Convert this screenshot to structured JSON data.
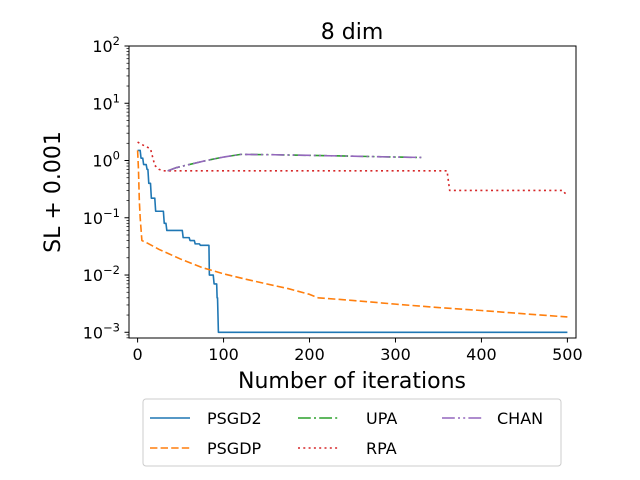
{
  "chart_data": {
    "type": "line",
    "title": "8 dim",
    "xlabel": "Number of iterations",
    "ylabel": "SL + 0.001",
    "xlim": [
      -10,
      510
    ],
    "ylim_log10": [
      -3.1,
      2.0
    ],
    "yscale": "log",
    "grid": false,
    "legend_position": "below-center",
    "x_ticks": [
      0,
      100,
      200,
      300,
      400,
      500
    ],
    "x_tick_labels": [
      "0",
      "100",
      "200",
      "300",
      "400",
      "500"
    ],
    "y_ticks": [
      0.001,
      0.01,
      0.1,
      1,
      10,
      100
    ],
    "y_tick_labels": [
      {
        "base": "10",
        "exp": "−3"
      },
      {
        "base": "10",
        "exp": "−2"
      },
      {
        "base": "10",
        "exp": "−1"
      },
      {
        "base": "10",
        "exp": "0"
      },
      {
        "base": "10",
        "exp": "1"
      },
      {
        "base": "10",
        "exp": "2"
      }
    ],
    "series": [
      {
        "name": "PSGD2",
        "color": "#1f77b4",
        "dash": "solid",
        "points": [
          [
            0,
            1.5
          ],
          [
            3,
            1.5
          ],
          [
            4,
            1.1
          ],
          [
            6,
            1.1
          ],
          [
            7,
            0.85
          ],
          [
            10,
            0.85
          ],
          [
            11,
            0.7
          ],
          [
            12,
            0.7
          ],
          [
            13,
            0.4
          ],
          [
            15,
            0.4
          ],
          [
            16,
            0.22
          ],
          [
            20,
            0.22
          ],
          [
            21,
            0.13
          ],
          [
            30,
            0.13
          ],
          [
            31,
            0.08
          ],
          [
            33,
            0.08
          ],
          [
            34,
            0.06
          ],
          [
            52,
            0.06
          ],
          [
            53,
            0.045
          ],
          [
            60,
            0.045
          ],
          [
            61,
            0.04
          ],
          [
            66,
            0.04
          ],
          [
            67,
            0.035
          ],
          [
            72,
            0.035
          ],
          [
            73,
            0.033
          ],
          [
            83,
            0.033
          ],
          [
            83.5,
            0.01
          ],
          [
            88,
            0.01
          ],
          [
            89,
            0.007
          ],
          [
            92,
            0.007
          ],
          [
            92.5,
            0.004
          ],
          [
            93,
            0.004
          ],
          [
            94,
            0.001
          ],
          [
            500,
            0.001
          ]
        ]
      },
      {
        "name": "PSGDP",
        "color": "#ff7f0e",
        "dash": "dashed",
        "points": [
          [
            0,
            1.5
          ],
          [
            1,
            0.7
          ],
          [
            2,
            0.2
          ],
          [
            3,
            0.1
          ],
          [
            5,
            0.04
          ],
          [
            10,
            0.037
          ],
          [
            25,
            0.028
          ],
          [
            50,
            0.019
          ],
          [
            75,
            0.0135
          ],
          [
            100,
            0.0105
          ],
          [
            125,
            0.0085
          ],
          [
            150,
            0.007
          ],
          [
            175,
            0.0058
          ],
          [
            200,
            0.0046
          ],
          [
            210,
            0.004
          ],
          [
            250,
            0.0036
          ],
          [
            300,
            0.0031
          ],
          [
            350,
            0.0027
          ],
          [
            400,
            0.0024
          ],
          [
            450,
            0.0021
          ],
          [
            500,
            0.00185
          ]
        ]
      },
      {
        "name": "UPA",
        "color": "#2ca02c",
        "dash": "dashdot",
        "points": [
          [
            35,
            0.66
          ],
          [
            45,
            0.75
          ],
          [
            60,
            0.85
          ],
          [
            80,
            1.0
          ],
          [
            100,
            1.15
          ],
          [
            120,
            1.28
          ],
          [
            160,
            1.26
          ],
          [
            200,
            1.23
          ],
          [
            250,
            1.19
          ],
          [
            300,
            1.15
          ],
          [
            330,
            1.13
          ]
        ]
      },
      {
        "name": "RPA",
        "color": "#d62728",
        "dash": "dotted",
        "points": [
          [
            0,
            2.1
          ],
          [
            5,
            1.9
          ],
          [
            10,
            1.75
          ],
          [
            15,
            1.6
          ],
          [
            20,
            0.82
          ],
          [
            25,
            0.7
          ],
          [
            30,
            0.66
          ],
          [
            100,
            0.66
          ],
          [
            200,
            0.66
          ],
          [
            300,
            0.66
          ],
          [
            360,
            0.66
          ],
          [
            363,
            0.3
          ],
          [
            495,
            0.3
          ],
          [
            497,
            0.27
          ],
          [
            500,
            0.26
          ]
        ]
      },
      {
        "name": "CHAN",
        "color": "#9467bd",
        "dash": "dashdotdot",
        "points": [
          [
            35,
            0.66
          ],
          [
            45,
            0.75
          ],
          [
            60,
            0.85
          ],
          [
            80,
            1.0
          ],
          [
            100,
            1.15
          ],
          [
            120,
            1.28
          ],
          [
            160,
            1.26
          ],
          [
            200,
            1.23
          ],
          [
            250,
            1.19
          ],
          [
            300,
            1.15
          ],
          [
            330,
            1.13
          ]
        ]
      }
    ],
    "legend_entries": [
      "PSGD2",
      "PSGDP",
      "UPA",
      "RPA",
      "CHAN"
    ]
  }
}
